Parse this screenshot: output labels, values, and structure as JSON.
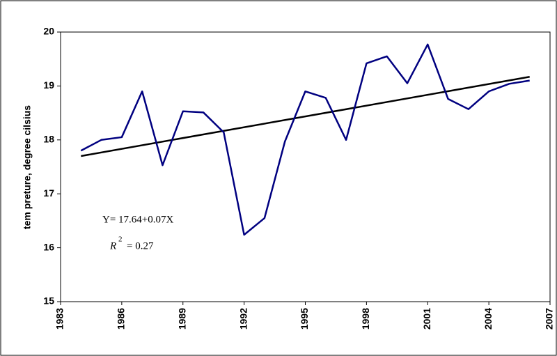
{
  "chart_data": {
    "type": "line",
    "y_label": "tem preture, degree cilsius",
    "x": [
      1984,
      1985,
      1986,
      1987,
      1988,
      1989,
      1990,
      1991,
      1992,
      1993,
      1994,
      1995,
      1996,
      1997,
      1998,
      1999,
      2000,
      2001,
      2002,
      2003,
      2004,
      2005,
      2006
    ],
    "series": [
      {
        "color": "#000080",
        "values": [
          17.8,
          18.0,
          18.05,
          18.9,
          17.53,
          18.53,
          18.51,
          18.14,
          16.24,
          16.55,
          17.97,
          18.9,
          18.78,
          18.0,
          19.42,
          19.55,
          19.05,
          19.77,
          18.76,
          18.57,
          18.9,
          19.04,
          19.1
        ]
      }
    ],
    "trend": {
      "x": [
        1984,
        2006
      ],
      "values": [
        17.7,
        19.17
      ],
      "color": "#000000"
    },
    "equation": "Y= 17.64+0.07X",
    "r2": {
      "symbol": "R",
      "exponent": "2",
      "text": "= 0.27"
    },
    "xlim": [
      1983,
      2007
    ],
    "xticks": [
      1983,
      1986,
      1989,
      1992,
      1995,
      1998,
      2001,
      2004,
      2007
    ],
    "ylim": [
      15,
      20
    ],
    "yticks": [
      15,
      16,
      17,
      18,
      19,
      20
    ]
  }
}
